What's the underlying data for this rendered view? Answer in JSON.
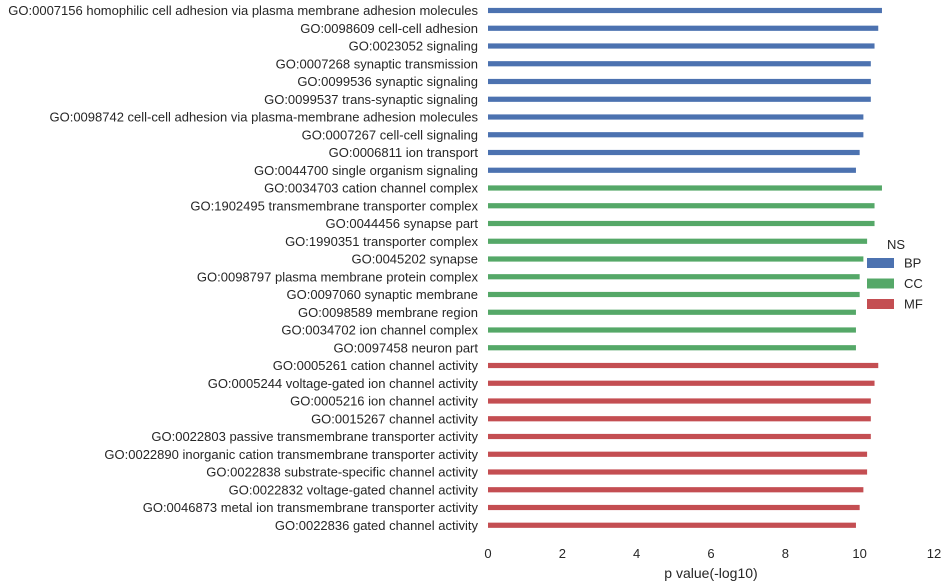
{
  "chart_data": {
    "type": "bar",
    "orientation": "horizontal",
    "xlabel": "p value(-log10)",
    "ylabel": "",
    "xlim": [
      0,
      12
    ],
    "xticks": [
      0,
      2,
      4,
      6,
      8,
      10,
      12
    ],
    "grid": false,
    "legend": {
      "title": "NS",
      "placement": "right",
      "entries": [
        {
          "name": "BP",
          "color": "#4c72b0"
        },
        {
          "name": "CC",
          "color": "#55a868"
        },
        {
          "name": "MF",
          "color": "#c44e52"
        }
      ]
    },
    "bars": [
      {
        "label": "GO:0007156 homophilic cell adhesion via plasma membrane adhesion molecules",
        "value": 10.6,
        "group": "BP"
      },
      {
        "label": "GO:0098609 cell-cell adhesion",
        "value": 10.5,
        "group": "BP"
      },
      {
        "label": "GO:0023052 signaling",
        "value": 10.4,
        "group": "BP"
      },
      {
        "label": "GO:0007268 synaptic transmission",
        "value": 10.3,
        "group": "BP"
      },
      {
        "label": "GO:0099536 synaptic signaling",
        "value": 10.3,
        "group": "BP"
      },
      {
        "label": "GO:0099537 trans-synaptic signaling",
        "value": 10.3,
        "group": "BP"
      },
      {
        "label": "GO:0098742 cell-cell adhesion via plasma-membrane adhesion molecules",
        "value": 10.1,
        "group": "BP"
      },
      {
        "label": "GO:0007267 cell-cell signaling",
        "value": 10.1,
        "group": "BP"
      },
      {
        "label": "GO:0006811 ion transport",
        "value": 10.0,
        "group": "BP"
      },
      {
        "label": "GO:0044700 single organism signaling",
        "value": 9.9,
        "group": "BP"
      },
      {
        "label": "GO:0034703 cation channel complex",
        "value": 10.6,
        "group": "CC"
      },
      {
        "label": "GO:1902495 transmembrane transporter complex",
        "value": 10.4,
        "group": "CC"
      },
      {
        "label": "GO:0044456 synapse part",
        "value": 10.4,
        "group": "CC"
      },
      {
        "label": "GO:1990351 transporter complex",
        "value": 10.2,
        "group": "CC"
      },
      {
        "label": "GO:0045202 synapse",
        "value": 10.1,
        "group": "CC"
      },
      {
        "label": "GO:0098797 plasma membrane protein complex",
        "value": 10.0,
        "group": "CC"
      },
      {
        "label": "GO:0097060 synaptic membrane",
        "value": 10.0,
        "group": "CC"
      },
      {
        "label": "GO:0098589 membrane region",
        "value": 9.9,
        "group": "CC"
      },
      {
        "label": "GO:0034702 ion channel complex",
        "value": 9.9,
        "group": "CC"
      },
      {
        "label": "GO:0097458 neuron part",
        "value": 9.9,
        "group": "CC"
      },
      {
        "label": "GO:0005261 cation channel activity",
        "value": 10.5,
        "group": "MF"
      },
      {
        "label": "GO:0005244 voltage-gated ion channel activity",
        "value": 10.4,
        "group": "MF"
      },
      {
        "label": "GO:0005216 ion channel activity",
        "value": 10.3,
        "group": "MF"
      },
      {
        "label": "GO:0015267 channel activity",
        "value": 10.3,
        "group": "MF"
      },
      {
        "label": "GO:0022803 passive transmembrane transporter activity",
        "value": 10.3,
        "group": "MF"
      },
      {
        "label": "GO:0022890 inorganic cation transmembrane transporter activity",
        "value": 10.2,
        "group": "MF"
      },
      {
        "label": "GO:0022838 substrate-specific channel activity",
        "value": 10.2,
        "group": "MF"
      },
      {
        "label": "GO:0022832 voltage-gated channel activity",
        "value": 10.1,
        "group": "MF"
      },
      {
        "label": "GO:0046873 metal ion transmembrane transporter activity",
        "value": 10.0,
        "group": "MF"
      },
      {
        "label": "GO:0022836 gated channel activity",
        "value": 9.9,
        "group": "MF"
      }
    ]
  }
}
